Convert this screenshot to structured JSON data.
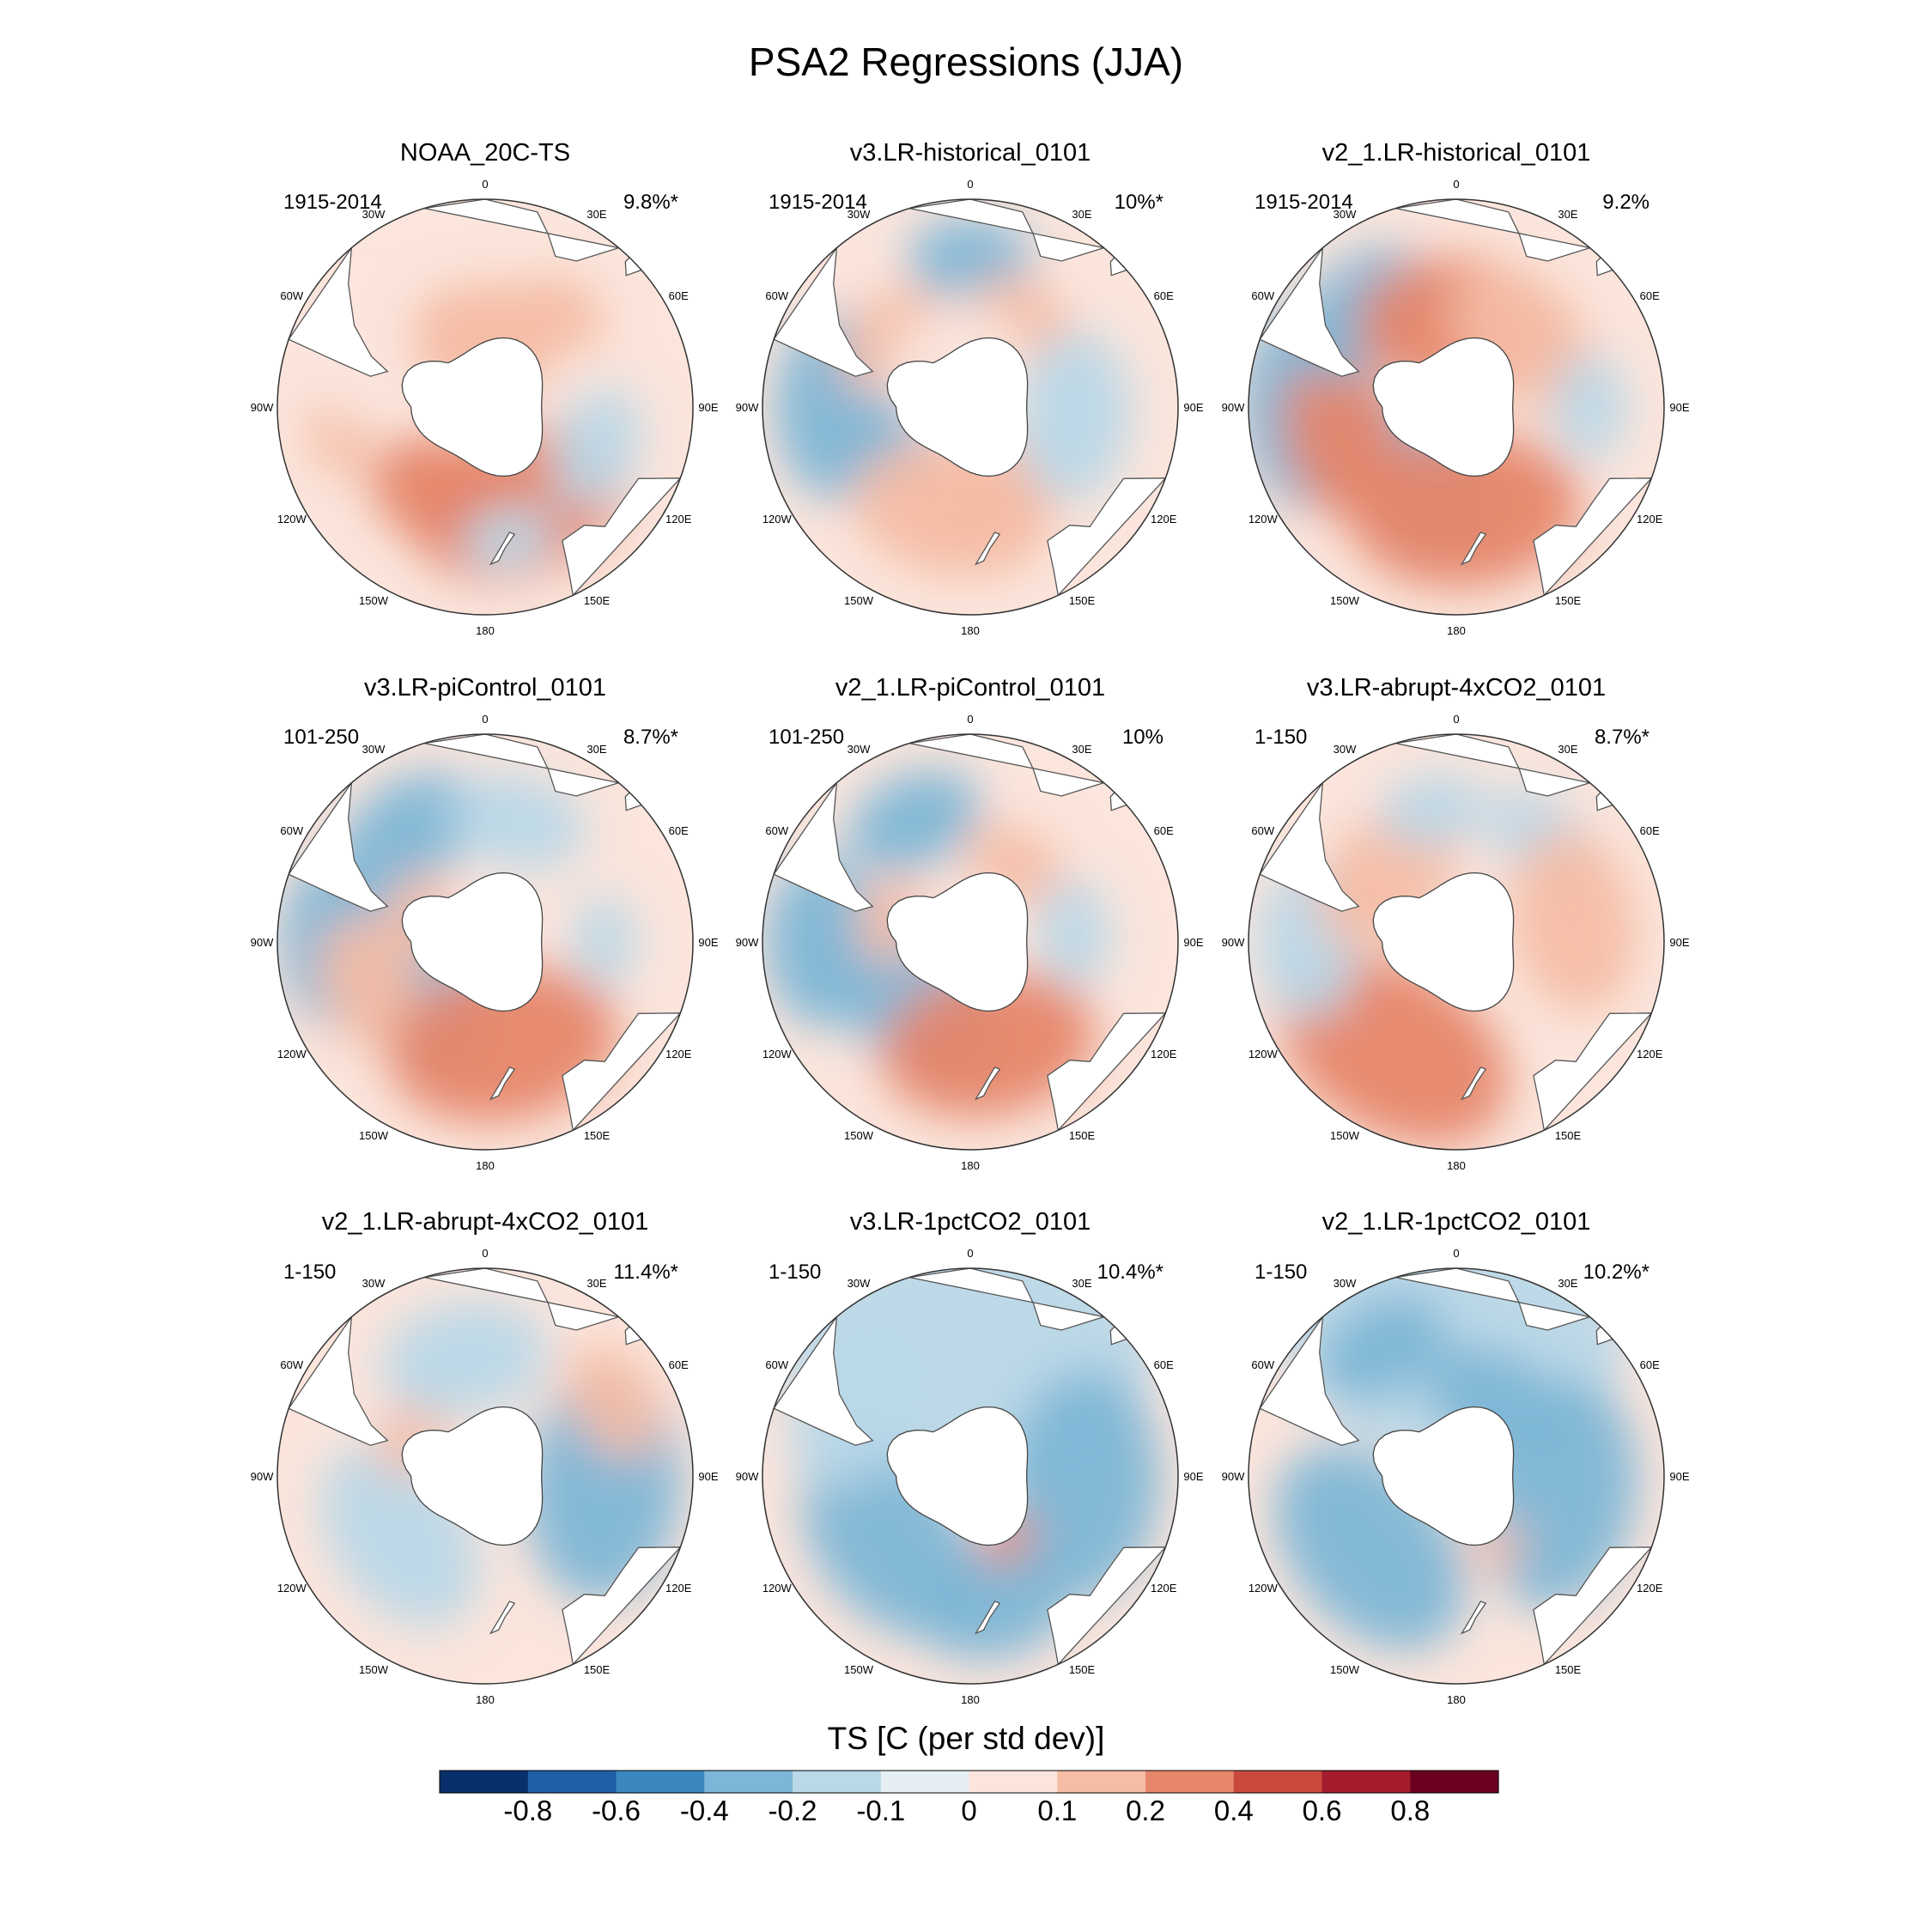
{
  "figure": {
    "title": "PSA2 Regressions (JJA)",
    "colorbar": {
      "title": "TS [C (per std dev)]",
      "tick_labels": [
        "-0.8",
        "-0.6",
        "-0.4",
        "-0.2",
        "-0.1",
        "0",
        "0.1",
        "0.2",
        "0.4",
        "0.6",
        "0.8"
      ],
      "colors": [
        "#08306b",
        "#1f5fa6",
        "#3b87c0",
        "#7db6d6",
        "#b9d8e8",
        "#e4eef3",
        "#fbe5dc",
        "#f6bda5",
        "#e6866a",
        "#c9493e",
        "#a51d2d",
        "#6b0020"
      ]
    },
    "longitude_labels": [
      "0",
      "30E",
      "60E",
      "90E",
      "120E",
      "150E",
      "180",
      "150W",
      "120W",
      "90W",
      "60W",
      "30W"
    ]
  },
  "chart_data": [
    {
      "type": "heatmap",
      "title": "NOAA_20C-TS",
      "period": "1915-2014",
      "variance_explained": "9.8%*",
      "pattern": [
        {
          "lon": -10,
          "lat": -62,
          "v": 0.2,
          "r": 80
        },
        {
          "lon": 20,
          "lat": -60,
          "v": 0.15,
          "r": 70
        },
        {
          "lon": 160,
          "lat": -55,
          "v": 0.3,
          "r": 140
        },
        {
          "lon": -160,
          "lat": -58,
          "v": 0.25,
          "r": 110
        },
        {
          "lon": 170,
          "lat": -45,
          "v": -0.15,
          "r": 60
        },
        {
          "lon": 110,
          "lat": -50,
          "v": -0.15,
          "r": 80
        },
        {
          "lon": -100,
          "lat": -40,
          "v": 0.15,
          "r": 60
        },
        {
          "lon": -70,
          "lat": -45,
          "v": 0.1,
          "r": 80
        },
        {
          "lon": 40,
          "lat": -48,
          "v": 0.15,
          "r": 60
        },
        {
          "lon": 0,
          "lat": -72,
          "v": 0.12,
          "r": 90
        }
      ]
    },
    {
      "type": "heatmap",
      "title": "v3.LR-historical_0101",
      "period": "1915-2014",
      "variance_explained": "10%*",
      "pattern": [
        {
          "lon": -90,
          "lat": -45,
          "v": -0.25,
          "r": 120
        },
        {
          "lon": -130,
          "lat": -62,
          "v": -0.2,
          "r": 70
        },
        {
          "lon": -170,
          "lat": -55,
          "v": 0.2,
          "r": 130
        },
        {
          "lon": 170,
          "lat": -60,
          "v": 0.2,
          "r": 100
        },
        {
          "lon": -50,
          "lat": -55,
          "v": 0.2,
          "r": 80
        },
        {
          "lon": 0,
          "lat": -40,
          "v": -0.2,
          "r": 80
        },
        {
          "lon": 30,
          "lat": -55,
          "v": 0.15,
          "r": 70
        },
        {
          "lon": 95,
          "lat": -55,
          "v": -0.15,
          "r": 110
        },
        {
          "lon": -20,
          "lat": -72,
          "v": 0.1,
          "r": 90
        }
      ]
    },
    {
      "type": "heatmap",
      "title": "v2_1.LR-historical_0101",
      "period": "1915-2014",
      "variance_explained": "9.2%",
      "pattern": [
        {
          "lon": -90,
          "lat": -40,
          "v": -0.3,
          "r": 130
        },
        {
          "lon": -145,
          "lat": -62,
          "v": -0.3,
          "r": 130
        },
        {
          "lon": -105,
          "lat": -50,
          "v": 0.25,
          "r": 110
        },
        {
          "lon": 175,
          "lat": -55,
          "v": 0.35,
          "r": 150
        },
        {
          "lon": -45,
          "lat": -45,
          "v": -0.25,
          "r": 100
        },
        {
          "lon": 0,
          "lat": -62,
          "v": 0.25,
          "r": 130
        },
        {
          "lon": 45,
          "lat": -58,
          "v": 0.2,
          "r": 110
        },
        {
          "lon": 90,
          "lat": -45,
          "v": -0.15,
          "r": 70
        }
      ]
    },
    {
      "type": "heatmap",
      "title": "v3.LR-piControl_0101",
      "period": "101-250",
      "variance_explained": "8.7%*",
      "pattern": [
        {
          "lon": -90,
          "lat": -40,
          "v": -0.25,
          "r": 110
        },
        {
          "lon": -125,
          "lat": -60,
          "v": -0.25,
          "r": 120
        },
        {
          "lon": -110,
          "lat": -48,
          "v": 0.2,
          "r": 90
        },
        {
          "lon": 170,
          "lat": -55,
          "v": 0.25,
          "r": 150
        },
        {
          "lon": -35,
          "lat": -45,
          "v": -0.2,
          "r": 100
        },
        {
          "lon": 15,
          "lat": -48,
          "v": -0.15,
          "r": 90
        },
        {
          "lon": 90,
          "lat": -50,
          "v": -0.15,
          "r": 60
        },
        {
          "lon": -70,
          "lat": -65,
          "v": 0.2,
          "r": 60
        }
      ]
    },
    {
      "type": "heatmap",
      "title": "v2_1.LR-piControl_0101",
      "period": "101-250",
      "variance_explained": "10%",
      "pattern": [
        {
          "lon": -90,
          "lat": -40,
          "v": -0.25,
          "r": 110
        },
        {
          "lon": -140,
          "lat": -62,
          "v": -0.25,
          "r": 120
        },
        {
          "lon": 170,
          "lat": -55,
          "v": 0.25,
          "r": 140
        },
        {
          "lon": -25,
          "lat": -45,
          "v": -0.2,
          "r": 90
        },
        {
          "lon": 30,
          "lat": -60,
          "v": 0.15,
          "r": 70
        },
        {
          "lon": 85,
          "lat": -55,
          "v": -0.15,
          "r": 70
        },
        {
          "lon": -75,
          "lat": -62,
          "v": 0.2,
          "r": 60
        }
      ]
    },
    {
      "type": "heatmap",
      "title": "v3.LR-abrupt-4xCO2_0101",
      "period": "1-150",
      "variance_explained": "8.7%*",
      "pattern": [
        {
          "lon": -150,
          "lat": -48,
          "v": 0.3,
          "r": 160
        },
        {
          "lon": -90,
          "lat": -40,
          "v": -0.15,
          "r": 100
        },
        {
          "lon": -45,
          "lat": -58,
          "v": 0.15,
          "r": 110
        },
        {
          "lon": 40,
          "lat": -45,
          "v": -0.15,
          "r": 80
        },
        {
          "lon": 80,
          "lat": -50,
          "v": 0.12,
          "r": 120
        },
        {
          "lon": -10,
          "lat": -45,
          "v": -0.12,
          "r": 70
        }
      ]
    },
    {
      "type": "heatmap",
      "title": "v2_1.LR-abrupt-4xCO2_0101",
      "period": "1-150",
      "variance_explained": "11.4%*",
      "pattern": [
        {
          "lon": -125,
          "lat": -55,
          "v": -0.15,
          "r": 130
        },
        {
          "lon": 95,
          "lat": -50,
          "v": -0.2,
          "r": 150
        },
        {
          "lon": 60,
          "lat": -40,
          "v": 0.2,
          "r": 80
        },
        {
          "lon": -60,
          "lat": -62,
          "v": 0.15,
          "r": 60
        },
        {
          "lon": -10,
          "lat": -50,
          "v": -0.1,
          "r": 110
        }
      ]
    },
    {
      "type": "heatmap",
      "title": "v3.LR-1pctCO2_0101",
      "period": "1-150",
      "variance_explained": "10.4%*",
      "pattern": [
        {
          "lon": 0,
          "lat": -50,
          "v": -0.15,
          "r": 240
        },
        {
          "lon": -130,
          "lat": -55,
          "v": -0.2,
          "r": 140
        },
        {
          "lon": 95,
          "lat": -52,
          "v": -0.25,
          "r": 150
        },
        {
          "lon": 170,
          "lat": -45,
          "v": -0.2,
          "r": 100
        },
        {
          "lon": -60,
          "lat": -45,
          "v": -0.15,
          "r": 110
        },
        {
          "lon": 150,
          "lat": -65,
          "v": 0.25,
          "r": 40
        }
      ]
    },
    {
      "type": "heatmap",
      "title": "v2_1.LR-1pctCO2_0101",
      "period": "1-150",
      "variance_explained": "10.2%*",
      "pattern": [
        {
          "lon": 0,
          "lat": -45,
          "v": -0.15,
          "r": 220
        },
        {
          "lon": -130,
          "lat": -52,
          "v": -0.3,
          "r": 150
        },
        {
          "lon": 100,
          "lat": -55,
          "v": -0.25,
          "r": 150
        },
        {
          "lon": 30,
          "lat": -62,
          "v": -0.2,
          "r": 100
        },
        {
          "lon": -30,
          "lat": -40,
          "v": -0.2,
          "r": 90
        },
        {
          "lon": 150,
          "lat": -62,
          "v": 0.2,
          "r": 40
        }
      ]
    }
  ]
}
